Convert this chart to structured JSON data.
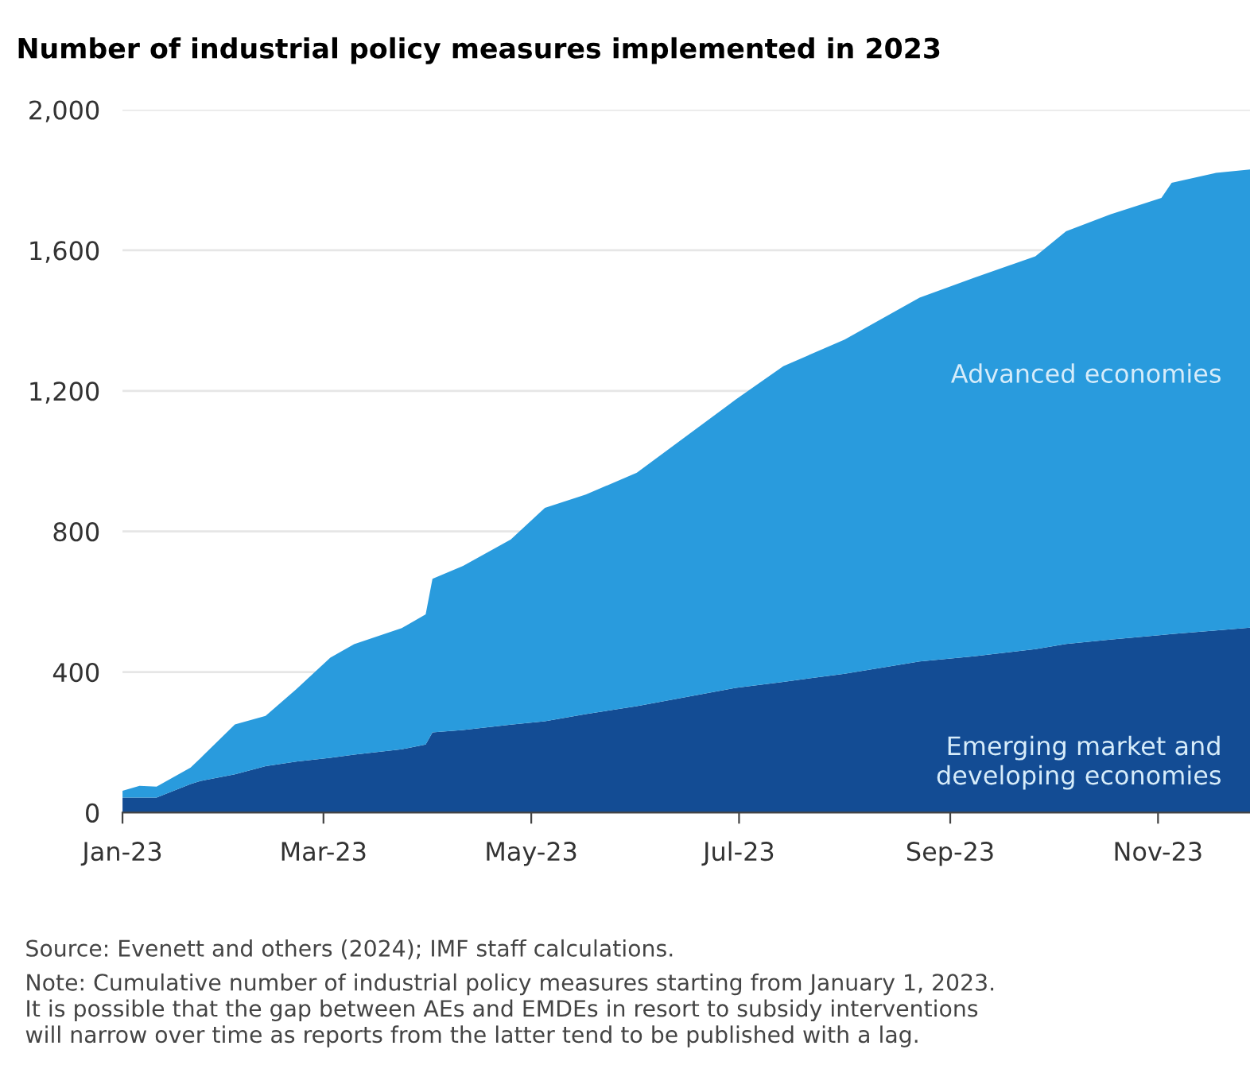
{
  "chart_data": {
    "type": "area",
    "stacked": true,
    "title": "Number of industrial policy measures implemented in 2023",
    "x": [
      "2023-01-01",
      "2023-01-06",
      "2023-01-11",
      "2023-01-21",
      "2023-01-24",
      "2023-02-03",
      "2023-02-12",
      "2023-02-21",
      "2023-03-03",
      "2023-03-10",
      "2023-03-24",
      "2023-03-31",
      "2023-04-02",
      "2023-04-11",
      "2023-04-25",
      "2023-05-05",
      "2023-05-17",
      "2023-06-01",
      "2023-06-30",
      "2023-07-14",
      "2023-08-01",
      "2023-08-23",
      "2023-09-08",
      "2023-09-26",
      "2023-10-05",
      "2023-10-18",
      "2023-11-02",
      "2023-11-05",
      "2023-11-18",
      "2023-11-28"
    ],
    "series": [
      {
        "name": "Emerging market and\ndeveloping economies",
        "color": "#134c94",
        "values": [
          43,
          43,
          43,
          81,
          90,
          109,
          132,
          145,
          156,
          165,
          180,
          194,
          228,
          235,
          250,
          260,
          280,
          303,
          355,
          372,
          395,
          430,
          445,
          465,
          480,
          492,
          505,
          508,
          518,
          526
        ]
      },
      {
        "name": "Advanced economies",
        "color": "#299bdd",
        "values": [
          19,
          33,
          31,
          47,
          66,
          142,
          143,
          206,
          285,
          314,
          345,
          370,
          437,
          467,
          527,
          607,
          625,
          664,
          820,
          898,
          951,
          1035,
          1077,
          1118,
          1174,
          1210,
          1244,
          1284,
          1302,
          1304
        ]
      }
    ],
    "xlim": [
      "2023-01-01",
      "2023-11-28"
    ],
    "xticks": [
      {
        "value": "2023-01-01",
        "label": "Jan-23"
      },
      {
        "value": "2023-03-01",
        "label": "Mar-23"
      },
      {
        "value": "2023-05-01",
        "label": "May-23"
      },
      {
        "value": "2023-07-01",
        "label": "Jul-23"
      },
      {
        "value": "2023-09-01",
        "label": "Sep-23"
      },
      {
        "value": "2023-11-01",
        "label": "Nov-23"
      }
    ],
    "ylim": [
      0,
      2000
    ],
    "yticks": [
      0,
      400,
      800,
      {
        "value": 1200,
        "label": "1,200"
      },
      {
        "value": 1600,
        "label": "1,600"
      },
      {
        "value": 2000,
        "label": "2,000"
      }
    ],
    "grid": "y",
    "annotations": [
      "Source: Evenett and others (2024); IMF staff calculations.",
      "Note: Cumulative number of industrial policy measures starting from January 1, 2023.\nIt is possible that the gap between AEs and EMDEs in resort to subsidy interventions\nwill narrow over time as reports from the latter tend to be published with a lag."
    ]
  }
}
